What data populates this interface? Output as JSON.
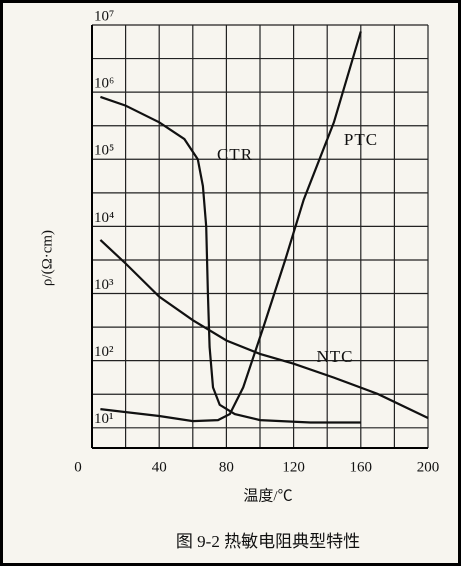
{
  "chart_data": {
    "type": "line",
    "caption": "图 9-2   热敏电阻典型特性",
    "xlabel": "温度/℃",
    "ylabel": "ρ/(Ω·cm)",
    "xlim": [
      0,
      200
    ],
    "xticks": [
      0,
      40,
      80,
      120,
      160,
      200
    ],
    "xgrid": [
      0,
      20,
      40,
      60,
      80,
      100,
      120,
      140,
      160,
      180,
      200
    ],
    "ylim": [
      5,
      10000000
    ],
    "log_y": true,
    "yticks": [
      {
        "value": 10,
        "label": "10¹"
      },
      {
        "value": 100,
        "label": "10²"
      },
      {
        "value": 1000,
        "label": "10³"
      },
      {
        "value": 10000,
        "label": "10⁴"
      },
      {
        "value": 100000,
        "label": "10⁵"
      },
      {
        "value": 1000000,
        "label": "10⁶"
      },
      {
        "value": 10000000,
        "label": "10⁷"
      }
    ],
    "ygrid": [
      10,
      31.6,
      100,
      316,
      1000,
      3160,
      10000,
      31600,
      100000,
      316000,
      1000000,
      3160000,
      10000000
    ],
    "grid": true,
    "series": [
      {
        "name": "CTR",
        "color": "#111111",
        "x": [
          5,
          20,
          40,
          55,
          63,
          66,
          68,
          69,
          70,
          72,
          76,
          85,
          100,
          130,
          160
        ],
        "values": [
          850000,
          630000,
          355000,
          200000,
          100000,
          40000,
          10000,
          1000,
          160,
          40,
          22,
          16,
          13,
          12,
          12
        ]
      },
      {
        "name": "PTC",
        "color": "#111111",
        "x": [
          5,
          40,
          60,
          75,
          82,
          90,
          102,
          115,
          126,
          144,
          160
        ],
        "values": [
          19,
          15,
          12.6,
          13,
          16,
          40,
          316,
          3160,
          25000,
          355000,
          8000000
        ]
      },
      {
        "name": "NTC",
        "color": "#111111",
        "x": [
          5,
          20,
          40,
          60,
          80,
          100,
          120,
          144,
          170,
          200
        ],
        "values": [
          6300,
          2800,
          900,
          400,
          200,
          126,
          90,
          56,
          32,
          14
        ]
      }
    ]
  }
}
